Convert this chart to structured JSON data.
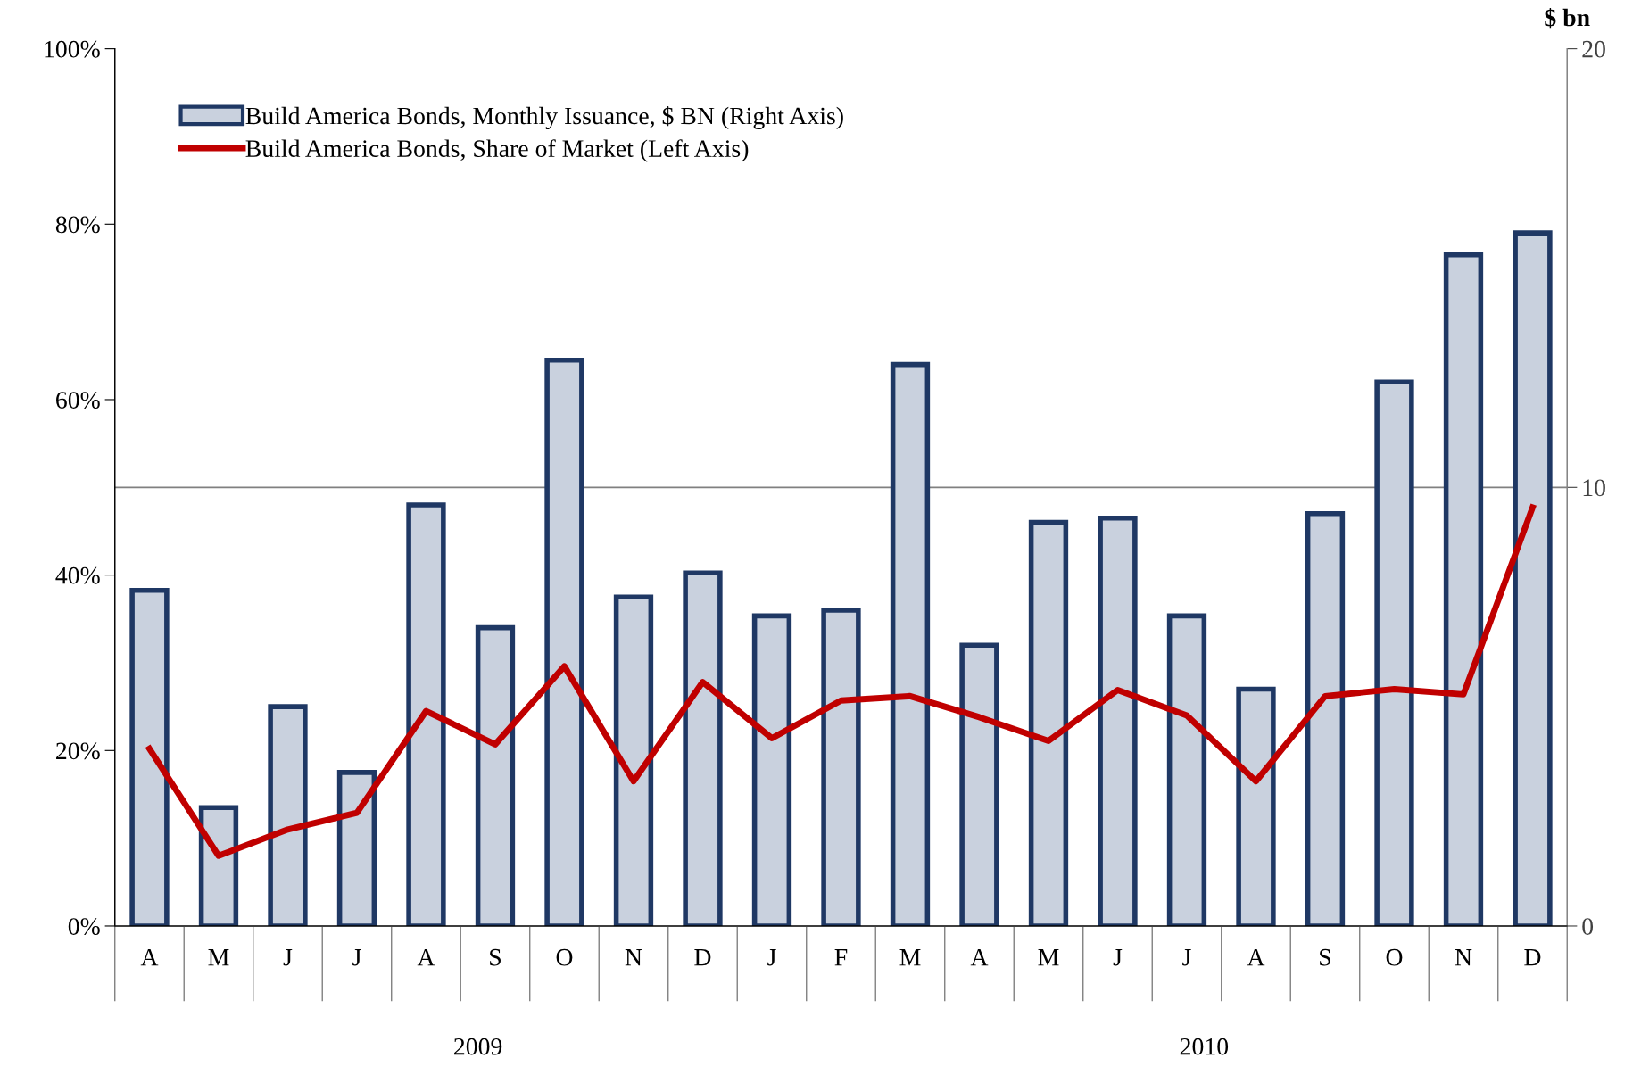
{
  "chart_data": {
    "type": "bar",
    "y2label": "$ bn",
    "categories": [
      "A",
      "M",
      "J",
      "J",
      "A",
      "S",
      "O",
      "N",
      "D",
      "J",
      "F",
      "M",
      "A",
      "M",
      "J",
      "J",
      "A",
      "S",
      "O",
      "N",
      "D"
    ],
    "series": [
      {
        "name": "Build America Bonds, Monthly Issuance, $ BN (Right Axis)",
        "axis": "y2",
        "color": "#c9d1de",
        "values": [
          7.65,
          2.7,
          5.0,
          3.5,
          9.6,
          6.8,
          12.9,
          7.5,
          8.05,
          7.07,
          7.2,
          12.8,
          6.4,
          9.2,
          9.3,
          7.07,
          5.4,
          9.4,
          12.4,
          15.3,
          15.8
        ]
      },
      {
        "name": "Build America Bonds, Share of Market (Left Axis)",
        "type": "line",
        "color": "#c00000",
        "values": [
          20.2,
          8.0,
          11.0,
          12.9,
          24.5,
          20.7,
          29.6,
          16.5,
          27.8,
          21.4,
          25.7,
          26.2,
          23.8,
          21.1,
          26.9,
          24.0,
          16.5,
          26.2,
          27.0,
          26.4,
          47.7
        ]
      }
    ],
    "ylim": [
      0,
      100
    ],
    "yticks": [
      {
        "value": 0,
        "label": "0%"
      },
      {
        "value": 20,
        "label": "20%"
      },
      {
        "value": 40,
        "label": "40%"
      },
      {
        "value": 60,
        "label": "60%"
      },
      {
        "value": 80,
        "label": "80%"
      },
      {
        "value": 100,
        "label": "100%"
      }
    ],
    "y2lim": [
      0,
      20
    ],
    "y2ticks": [
      0,
      10,
      20
    ],
    "ref_lines": [
      {
        "axis": "y2",
        "value": 10,
        "color": "#808080"
      }
    ],
    "annotations": [
      "2009",
      "2010"
    ],
    "legend": "top left",
    "grid": false,
    "marker": "none",
    "line_style": "solid"
  }
}
